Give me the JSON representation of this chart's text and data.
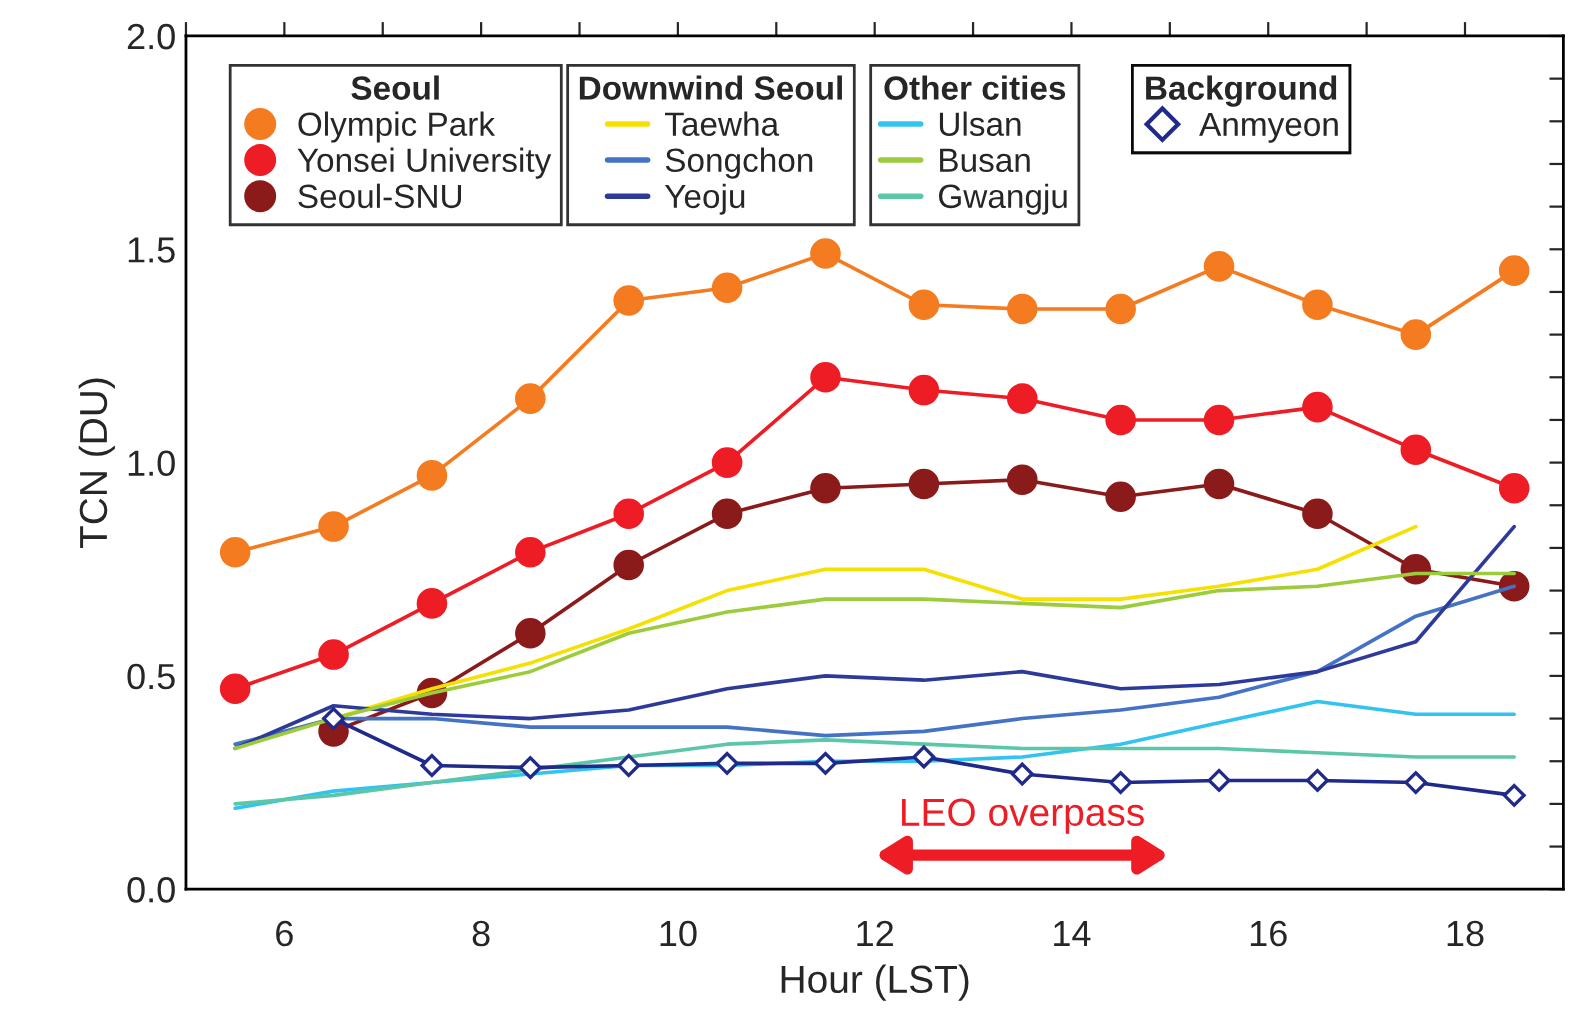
{
  "chart_data": {
    "type": "line",
    "xlabel": "Hour (LST)",
    "ylabel": "TCN (DU)",
    "x": [
      5.5,
      6.5,
      7.5,
      8.5,
      9.5,
      10.5,
      11.5,
      12.5,
      13.5,
      14.5,
      15.5,
      16.5,
      17.5,
      18.5
    ],
    "legend_title": [
      "Seoul",
      "Downwind Seoul",
      "Other cities",
      "Background"
    ],
    "legend": "top",
    "series": [
      {
        "name": "Olympic Park",
        "color": "#f47b20",
        "marker": "circle",
        "values": [
          0.79,
          0.85,
          0.97,
          1.15,
          1.38,
          1.41,
          1.49,
          1.37,
          1.36,
          1.36,
          1.46,
          1.37,
          1.3,
          1.45
        ]
      },
      {
        "name": "Yonsei University",
        "color": "#ee1c25",
        "marker": "circle",
        "values": [
          0.47,
          0.55,
          0.67,
          0.79,
          0.88,
          1.0,
          1.2,
          1.17,
          1.15,
          1.1,
          1.1,
          1.13,
          1.03,
          0.94
        ]
      },
      {
        "name": "Seoul-SNU",
        "color": "#8b1a1a",
        "marker": "circle",
        "values": [
          null,
          0.37,
          0.46,
          0.6,
          0.76,
          0.88,
          0.94,
          0.95,
          0.96,
          0.92,
          0.95,
          0.88,
          0.75,
          0.71
        ]
      },
      {
        "name": "Taewha",
        "color": "#f5e000",
        "marker": "none",
        "values": [
          0.34,
          0.4,
          0.47,
          0.53,
          0.61,
          0.7,
          0.75,
          0.75,
          0.68,
          0.68,
          0.71,
          0.75,
          0.85,
          null
        ]
      },
      {
        "name": "Songchon",
        "color": "#4472c4",
        "marker": "none",
        "values": [
          0.34,
          0.4,
          0.4,
          0.38,
          0.38,
          0.38,
          0.36,
          0.37,
          0.4,
          0.42,
          0.45,
          0.51,
          0.64,
          0.71
        ]
      },
      {
        "name": "Yeoju",
        "color": "#2e3a9a",
        "marker": "none",
        "values": [
          0.33,
          0.43,
          0.41,
          0.4,
          0.42,
          0.47,
          0.5,
          0.49,
          0.51,
          0.47,
          0.48,
          0.51,
          0.58,
          0.85
        ]
      },
      {
        "name": "Ulsan",
        "color": "#33c3f0",
        "marker": "none",
        "values": [
          0.19,
          0.23,
          0.25,
          0.27,
          0.29,
          0.29,
          0.3,
          0.3,
          0.31,
          0.34,
          0.39,
          0.44,
          0.41,
          0.41
        ]
      },
      {
        "name": "Busan",
        "color": "#9ccc3c",
        "marker": "none",
        "values": [
          0.33,
          0.4,
          0.46,
          0.51,
          0.6,
          0.65,
          0.68,
          0.68,
          0.67,
          0.66,
          0.7,
          0.71,
          0.74,
          0.74
        ]
      },
      {
        "name": "Gwangju",
        "color": "#5cc6a8",
        "marker": "none",
        "values": [
          0.2,
          0.22,
          0.25,
          0.28,
          0.31,
          0.34,
          0.35,
          0.34,
          0.33,
          0.33,
          0.33,
          0.32,
          0.31,
          0.31
        ]
      },
      {
        "name": "Anmyeon",
        "color": "#1f2a8a",
        "marker": "diamond",
        "values": [
          null,
          0.4,
          0.29,
          0.285,
          0.29,
          0.295,
          0.295,
          0.31,
          0.27,
          0.25,
          0.255,
          0.255,
          0.25,
          0.22
        ]
      }
    ],
    "xlim": [
      5,
      19
    ],
    "xticks": [
      {
        "value": 5,
        "label": null
      },
      6,
      {
        "value": 7,
        "label": null
      },
      8,
      {
        "value": 9,
        "label": null
      },
      10,
      {
        "value": 11,
        "label": null
      },
      12,
      {
        "value": 13,
        "label": null
      },
      14,
      {
        "value": 15,
        "label": null
      },
      16,
      {
        "value": 17,
        "label": null
      },
      18
    ],
    "ylim": [
      0,
      2
    ],
    "yticks": [
      {
        "value": 0,
        "label": "0.0"
      },
      {
        "value": 0.1,
        "label": null
      },
      {
        "value": 0.2,
        "label": null
      },
      {
        "value": 0.3,
        "label": null
      },
      {
        "value": 0.4,
        "label": null
      },
      {
        "value": 0.5,
        "label": "0.5"
      },
      {
        "value": 0.6,
        "label": null
      },
      {
        "value": 0.7,
        "label": null
      },
      {
        "value": 0.8,
        "label": null
      },
      {
        "value": 0.9,
        "label": null
      },
      {
        "value": 1.0,
        "label": "1.0"
      },
      {
        "value": 1.1,
        "label": null
      },
      {
        "value": 1.2,
        "label": null
      },
      {
        "value": 1.3,
        "label": null
      },
      {
        "value": 1.4,
        "label": null
      },
      {
        "value": 1.5,
        "label": "1.5"
      },
      {
        "value": 1.6,
        "label": null
      },
      {
        "value": 1.7,
        "label": null
      },
      {
        "value": 1.8,
        "label": null
      },
      {
        "value": 1.9,
        "label": null
      },
      {
        "value": 2.0,
        "label": "2.0"
      }
    ],
    "annotations": [
      "LEO overpass"
    ],
    "grid": false
  }
}
